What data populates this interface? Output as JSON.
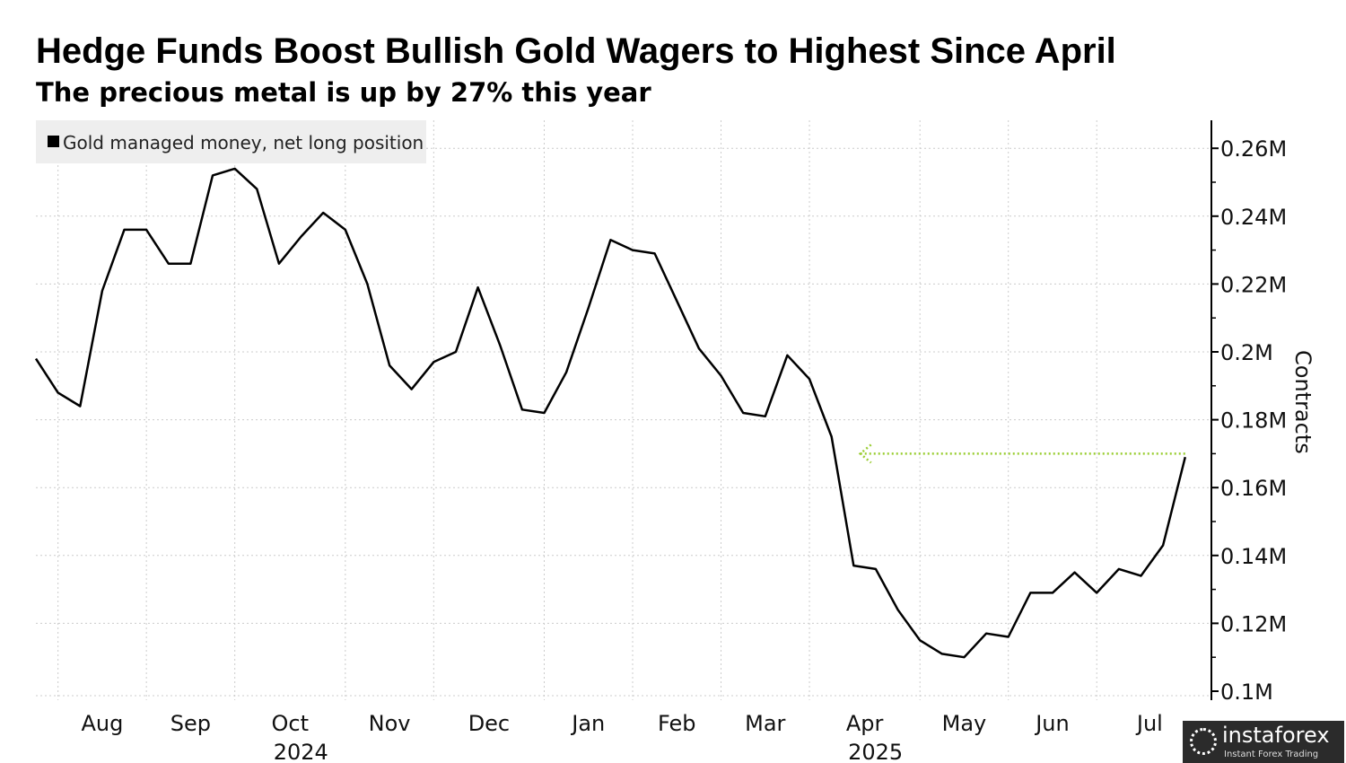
{
  "chart_data": {
    "type": "line",
    "title": "Hedge Funds Boost Bullish Gold Wagers to Highest Since April",
    "subtitle": "The precious metal is up by 27% this year",
    "ylabel": "Contracts",
    "xlabel": "",
    "legend": {
      "label": "Gold managed money, net long position",
      "placement": "top-left"
    },
    "ylim": [
      0.1,
      0.26
    ],
    "y_ticks": [
      0.1,
      0.12,
      0.14,
      0.16,
      0.18,
      0.2,
      0.22,
      0.24,
      0.26
    ],
    "y_tick_labels": [
      "0.1M",
      "0.12M",
      "0.14M",
      "0.16M",
      "0.18M",
      "0.2M",
      "0.22M",
      "0.24M",
      "0.26M"
    ],
    "x_unit": "week index (weekly observations, late Jul 2024 to late Jul 2025)",
    "month_gridlines_week_index": [
      1,
      5,
      9,
      14,
      18,
      23,
      27,
      31,
      35,
      40,
      44,
      48
    ],
    "x_tick_labels": [
      {
        "label": "Aug",
        "at": 3
      },
      {
        "label": "Sep",
        "at": 7
      },
      {
        "label": "Oct",
        "at": 11.5,
        "year": "2024"
      },
      {
        "label": "Nov",
        "at": 16
      },
      {
        "label": "Dec",
        "at": 20.5
      },
      {
        "label": "Jan",
        "at": 25
      },
      {
        "label": "Feb",
        "at": 29
      },
      {
        "label": "Mar",
        "at": 33
      },
      {
        "label": "Apr",
        "at": 37.5,
        "year": "2025"
      },
      {
        "label": "May",
        "at": 42
      },
      {
        "label": "Jun",
        "at": 46
      },
      {
        "label": "Jul",
        "at": 50.4
      }
    ],
    "grid": true,
    "series": [
      {
        "name": "Gold managed money, net long position",
        "color": "#000000",
        "values": [
          0.198,
          0.188,
          0.184,
          0.218,
          0.236,
          0.236,
          0.226,
          0.226,
          0.252,
          0.254,
          0.248,
          0.226,
          0.234,
          0.241,
          0.236,
          0.22,
          0.196,
          0.189,
          0.197,
          0.2,
          0.219,
          0.202,
          0.183,
          0.182,
          0.194,
          0.213,
          0.233,
          0.23,
          0.229,
          0.215,
          0.201,
          0.193,
          0.182,
          0.181,
          0.199,
          0.192,
          0.175,
          0.137,
          0.136,
          0.124,
          0.115,
          0.111,
          0.11,
          0.117,
          0.116,
          0.129,
          0.129,
          0.135,
          0.129,
          0.136,
          0.134,
          0.143,
          0.169
        ]
      }
    ],
    "annotation": {
      "type": "arrow",
      "value": 0.17,
      "from_week": 52,
      "to_week": 37.3,
      "color": "#9acd32"
    }
  },
  "watermark": {
    "name": "instaforex",
    "tagline": "Instant Forex Trading"
  }
}
